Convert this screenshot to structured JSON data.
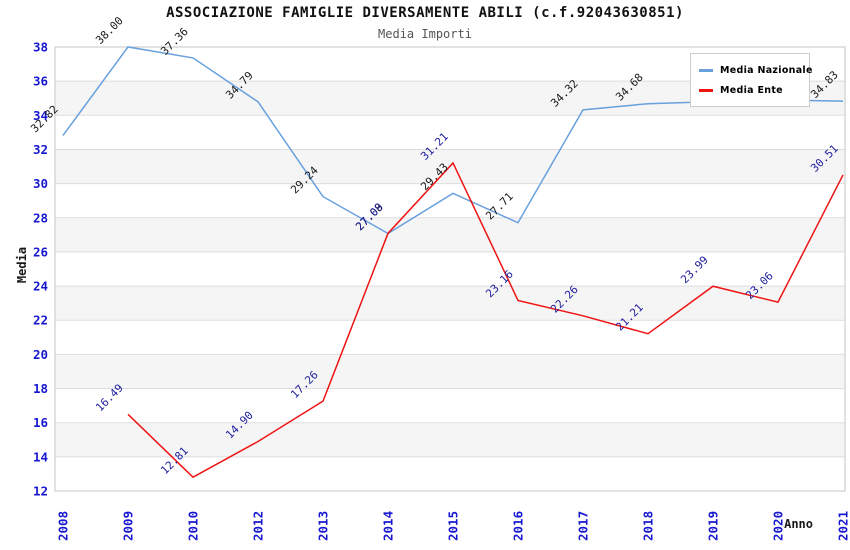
{
  "title": "ASSOCIAZIONE FAMIGLIE DIVERSAMENTE ABILI (c.f.92043630851)",
  "subtitle": "Media Importi",
  "axes": {
    "x_title": "Anno",
    "y_title": "Media",
    "y_min": 12,
    "y_max": 38,
    "y_step": 2,
    "tick_color": "#1717d1"
  },
  "colors": {
    "background": "#ffffff",
    "band": "#f5f5f5",
    "grid": "#dddddd",
    "plot_border": "#c6c6c6",
    "national_line": "#68a0dd",
    "ente_line": "#ee1414"
  },
  "chart_data": {
    "type": "line",
    "title": "ASSOCIAZIONE FAMIGLIE DIVERSAMENTE ABILI (c.f.92043630851)",
    "subtitle": "Media Importi",
    "xlabel": "Anno",
    "ylabel": "Media",
    "ylim": [
      12,
      38
    ],
    "y_tick_step": 2,
    "grid": "horizontal-bands-on",
    "legend_position": "top-right",
    "categories": [
      "2008",
      "2009",
      "2010",
      "2012",
      "2013",
      "2014",
      "2015",
      "2016",
      "2017",
      "2018",
      "2019",
      "2020",
      "2021"
    ],
    "series": [
      {
        "name": "Media Nazionale",
        "color": "#68a0dd",
        "label_color": "#1a1a1a",
        "values": [
          32.82,
          38.0,
          37.36,
          34.79,
          29.24,
          27.08,
          29.43,
          27.71,
          34.32,
          34.68,
          34.8,
          34.9,
          34.83
        ],
        "labels": [
          "32.82",
          "38.00",
          "37.36",
          "34.79",
          "29.24",
          "27.08",
          "29.43",
          "27.71",
          "34.32",
          "34.68",
          null,
          null,
          "34.83"
        ]
      },
      {
        "name": "Media Ente",
        "color": "#ee1414",
        "label_color": "#1c1c9e",
        "values": [
          null,
          16.49,
          12.81,
          14.9,
          17.26,
          27.09,
          31.21,
          23.16,
          22.26,
          21.21,
          23.99,
          23.06,
          30.51
        ],
        "labels": [
          null,
          "16.49",
          "12.81",
          "14.90",
          "17.26",
          "27.09",
          "31.21",
          "23.16",
          "22.26",
          "21.21",
          "23.99",
          "23.06",
          "30.51"
        ]
      }
    ]
  }
}
